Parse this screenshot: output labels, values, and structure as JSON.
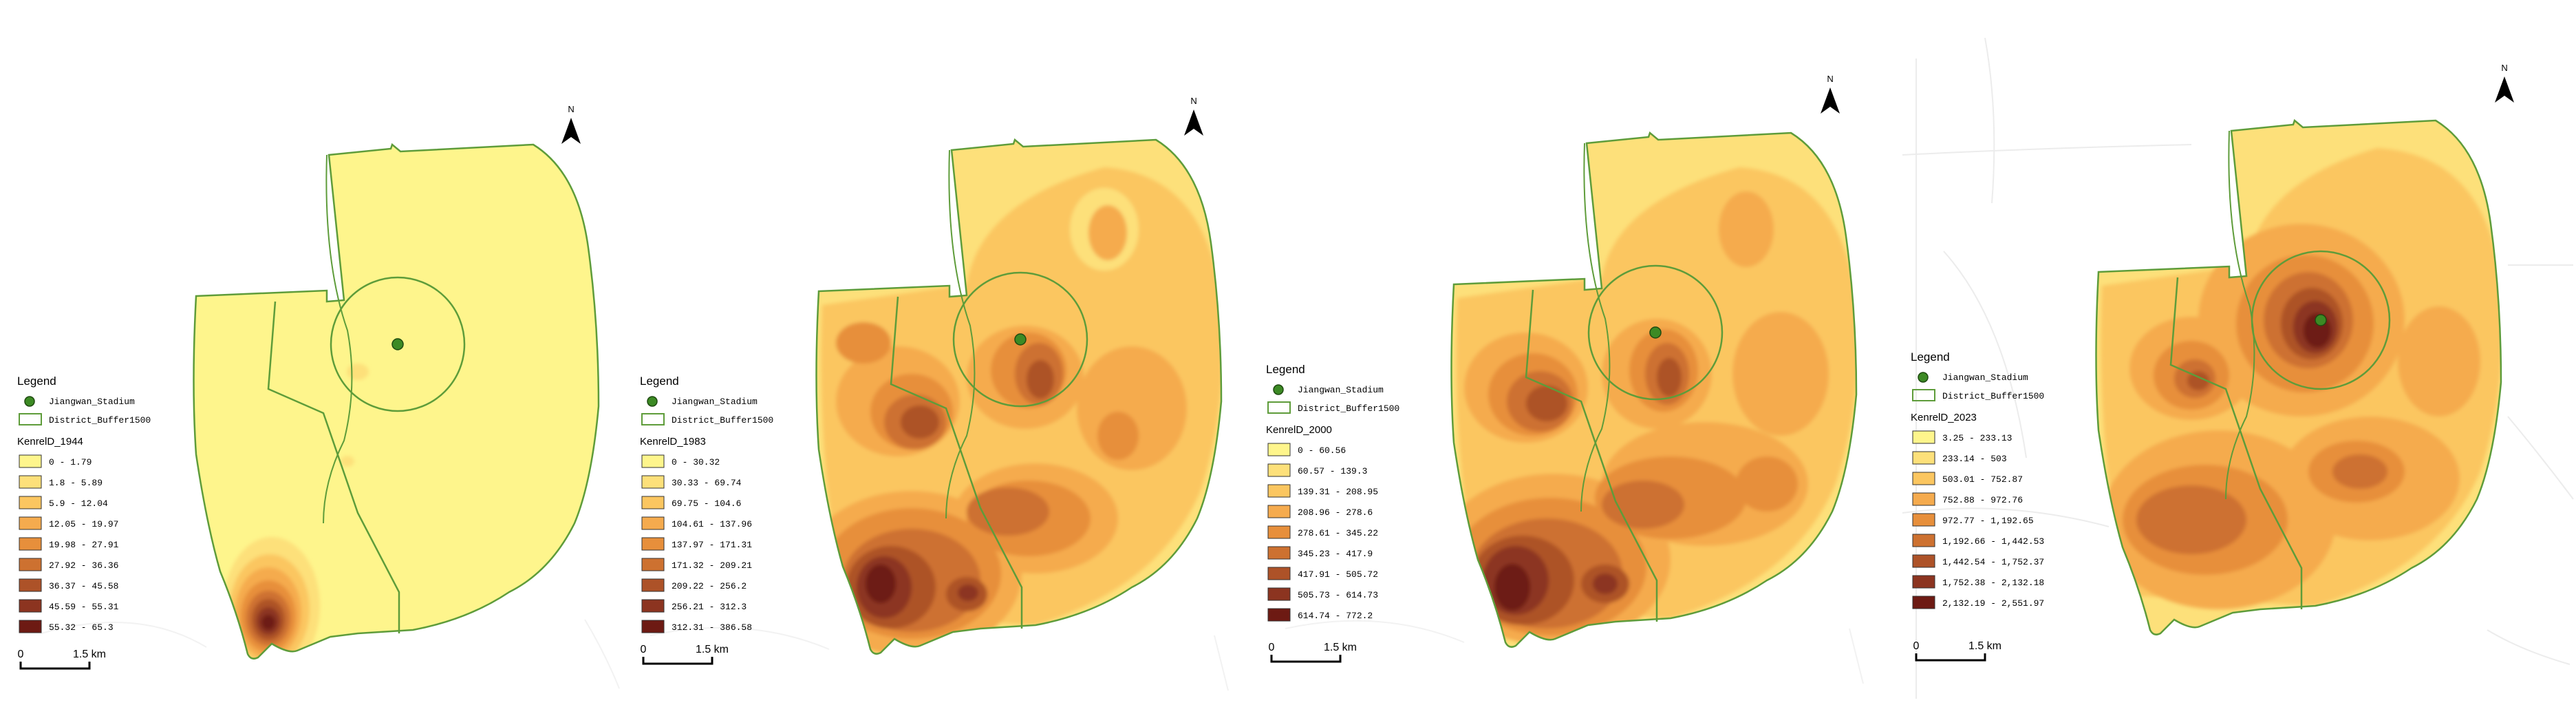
{
  "common": {
    "legend_title": "Legend",
    "stadium_label": "Jiangwan_Stadium",
    "buffer_label": "District_Buffer1500",
    "north_label": "N",
    "scale_zero": "0",
    "scale_label": "1.5 km"
  },
  "colors": {
    "ramp": [
      "#fef58c",
      "#fde07a",
      "#fbc660",
      "#f5ab4e",
      "#e78f3b",
      "#cd7130",
      "#ad5228",
      "#8c3420",
      "#6d1a13"
    ],
    "boundary": "#5e9c3a",
    "stadium_dot": "#3c8a24",
    "north_arrow": "#000000"
  },
  "panels": [
    {
      "id": "1944",
      "kde_title": "KenrelD_1944",
      "classes": [
        "0 - 1.79",
        "1.8 - 5.89",
        "5.9 - 12.04",
        "12.05 - 19.97",
        "19.98 - 27.91",
        "27.92 - 36.36",
        "36.37 - 45.58",
        "45.59 - 55.31",
        "55.32 - 65.3"
      ]
    },
    {
      "id": "1983",
      "kde_title": "KenrelD_1983",
      "classes": [
        "0 - 30.32",
        "30.33 - 69.74",
        "69.75 - 104.6",
        "104.61 - 137.96",
        "137.97 - 171.31",
        "171.32 - 209.21",
        "209.22 - 256.2",
        "256.21 - 312.3",
        "312.31 - 386.58"
      ]
    },
    {
      "id": "2000",
      "kde_title": "KenrelD_2000",
      "classes": [
        "0 - 60.56",
        "60.57 - 139.3",
        "139.31 - 208.95",
        "208.96 - 278.6",
        "278.61 - 345.22",
        "345.23 - 417.9",
        "417.91 - 505.72",
        "505.73 - 614.73",
        "614.74 - 772.2"
      ]
    },
    {
      "id": "2023",
      "kde_title": "KenrelD_2023",
      "classes": [
        "3.25 - 233.13",
        "233.14 - 503",
        "503.01 - 752.87",
        "752.88 - 972.76",
        "972.77 - 1,192.65",
        "1,192.66 - 1,442.53",
        "1,442.54 - 1,752.37",
        "1,752.38 - 2,132.18",
        "2,132.19 - 2,551.97"
      ]
    }
  ]
}
